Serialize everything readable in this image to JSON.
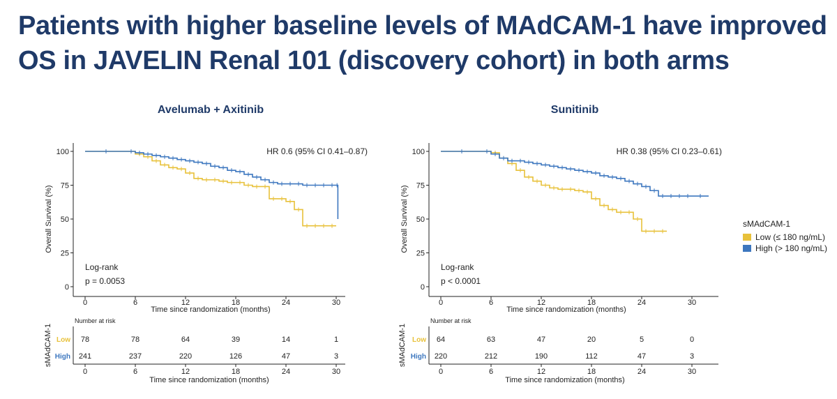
{
  "slide": {
    "title_line1": "Patients with higher baseline levels of MAdCAM-1 have improved",
    "title_line2": "OS in JAVELIN Renal 101 (discovery cohort) in both arms"
  },
  "legend": {
    "title": "sMAdCAM-1",
    "entries": [
      {
        "label": "Low (≤ 180 ng/mL)",
        "color": "#e8c13a"
      },
      {
        "label": "High (> 180 ng/mL)",
        "color": "#3d77bf"
      }
    ]
  },
  "colors": {
    "low": "#e8c13a",
    "high": "#3d77bf",
    "title": "#1f3a68"
  },
  "chart_data": [
    {
      "type": "line",
      "title": "Avelumab + Axitinib",
      "xlabel": "Time since randomization (months)",
      "ylabel": "Overall Survival (%)",
      "xlim": [
        0,
        30
      ],
      "ylim": [
        0,
        100
      ],
      "xticks": [
        0,
        6,
        12,
        18,
        24,
        30
      ],
      "yticks": [
        0,
        25,
        50,
        75,
        100
      ],
      "grid": false,
      "annotation_hr": "HR 0.6 (95% CI 0.41–0.87)",
      "annotation_test": "Log-rank",
      "annotation_p": "p = 0.0053",
      "series": [
        {
          "name": "Low (≤ 180 ng/mL)",
          "color": "#e8c13a",
          "x": [
            0,
            5,
            6,
            7,
            8,
            9,
            10,
            11,
            12,
            13,
            14,
            15,
            16,
            17,
            18,
            19,
            20,
            21,
            22,
            23,
            24,
            25,
            26,
            27,
            28,
            29,
            30
          ],
          "y": [
            100,
            100,
            98,
            96,
            93,
            90,
            88,
            87,
            84,
            80,
            79,
            79,
            78,
            77,
            77,
            75,
            74,
            74,
            65,
            65,
            63,
            57,
            45,
            45,
            45,
            45,
            45
          ]
        },
        {
          "name": "High (> 180 ng/mL)",
          "color": "#3d77bf",
          "x": [
            0,
            5,
            6,
            7,
            8,
            9,
            10,
            11,
            12,
            13,
            14,
            15,
            16,
            17,
            18,
            19,
            20,
            21,
            22,
            23,
            24,
            25,
            26,
            27,
            28,
            29,
            30,
            30.2
          ],
          "y": [
            100,
            100,
            99,
            98,
            97,
            96,
            95,
            94,
            93,
            92,
            91,
            89,
            88,
            86,
            85,
            83,
            81,
            79,
            77,
            76,
            76,
            76,
            75,
            75,
            75,
            75,
            75,
            50
          ]
        }
      ],
      "risk_table": {
        "header": "Number at risk",
        "ylabel": "sMAdCAM-1",
        "rows": [
          {
            "label": "Low",
            "values": [
              78,
              78,
              64,
              39,
              14,
              1
            ]
          },
          {
            "label": "High",
            "values": [
              241,
              237,
              220,
              126,
              47,
              3
            ]
          }
        ],
        "x": [
          0,
          6,
          12,
          18,
          24,
          30
        ],
        "xlabel": "Time since randomization (months)"
      }
    },
    {
      "type": "line",
      "title": "Sunitinib",
      "xlabel": "Time since randomization (months)",
      "ylabel": "Overall Survival (%)",
      "xlim": [
        0,
        30
      ],
      "ylim": [
        0,
        100
      ],
      "xticks": [
        0,
        6,
        12,
        18,
        24,
        30
      ],
      "yticks": [
        0,
        25,
        50,
        75,
        100
      ],
      "grid": false,
      "annotation_hr": "HR 0.38 (95% CI 0.23–0.61)",
      "annotation_test": "Log-rank",
      "annotation_p": "p < 0.0001",
      "series": [
        {
          "name": "Low (≤ 180 ng/mL)",
          "color": "#e8c13a",
          "x": [
            0,
            5,
            6,
            7,
            8,
            9,
            10,
            11,
            12,
            13,
            14,
            15,
            16,
            17,
            18,
            19,
            20,
            21,
            22,
            23,
            24,
            25,
            26,
            27
          ],
          "y": [
            100,
            100,
            99,
            95,
            91,
            86,
            81,
            78,
            75,
            73,
            72,
            72,
            71,
            70,
            65,
            60,
            57,
            55,
            55,
            50,
            41,
            41,
            41,
            41
          ]
        },
        {
          "name": "High (> 180 ng/mL)",
          "color": "#3d77bf",
          "x": [
            0,
            5,
            6,
            7,
            8,
            9,
            10,
            11,
            12,
            13,
            14,
            15,
            16,
            17,
            18,
            19,
            20,
            21,
            22,
            23,
            24,
            25,
            26,
            27,
            28,
            29,
            30,
            32
          ],
          "y": [
            100,
            100,
            98,
            95,
            93,
            93,
            92,
            91,
            90,
            89,
            88,
            87,
            86,
            85,
            84,
            82,
            81,
            80,
            78,
            76,
            74,
            71,
            67,
            67,
            67,
            67,
            67,
            67
          ]
        }
      ],
      "risk_table": {
        "header": "Number at risk",
        "ylabel": "sMAdCAM-1",
        "rows": [
          {
            "label": "Low",
            "values": [
              64,
              63,
              47,
              20,
              5,
              0
            ]
          },
          {
            "label": "High",
            "values": [
              220,
              212,
              190,
              112,
              47,
              3
            ]
          }
        ],
        "x": [
          0,
          6,
          12,
          18,
          24,
          30
        ],
        "xlabel": "Time since randomization (months)"
      }
    }
  ]
}
